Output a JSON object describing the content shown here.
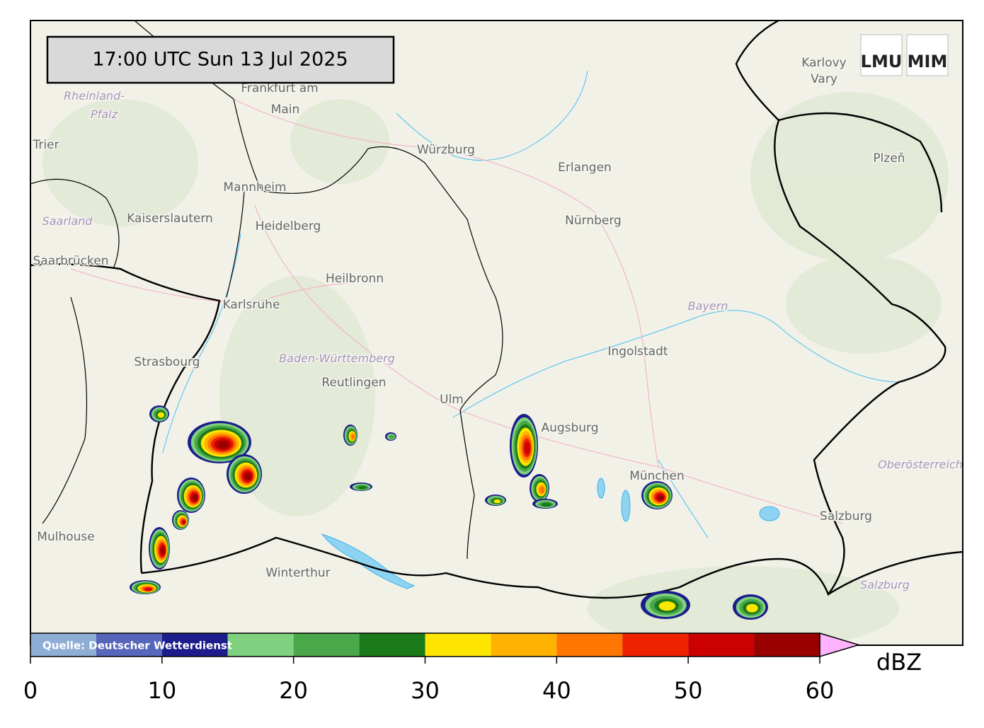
{
  "timestamp": "17:00 UTC  Sun 13 Jul 2025",
  "source": "Quelle: Deutscher Wetterdienst",
  "logos": [
    "LMU",
    "MIM"
  ],
  "cities": [
    "Frankfurt am",
    "Main",
    "Trier",
    "Würzburg",
    "Erlangen",
    "Nürnberg",
    "Mannheim",
    "Kaiserslautern",
    "Heidelberg",
    "Saarbrücken",
    "Heilbronn",
    "Karlsruhe",
    "Ingolstadt",
    "Strasbourg",
    "Reutlingen",
    "Ulm",
    "Augsburg",
    "München",
    "Salzburg",
    "Mulhouse",
    "Winterthur",
    "Karlovy",
    "Vary",
    "Plzeň"
  ],
  "regions": [
    "Rheinland-",
    "Pfalz",
    "Saarland",
    "Bayern",
    "Baden-Württemberg",
    "Oberösterreich",
    "Salzburg"
  ],
  "colorbar": {
    "unit": "dBZ",
    "bounds": [
      0,
      5,
      10,
      15,
      20,
      25,
      30,
      35,
      40,
      45,
      50,
      55,
      60
    ],
    "colors": [
      "#8eaed6",
      "#5566bb",
      "#1c1c8c",
      "#7fd17f",
      "#4aa84a",
      "#1a7a1a",
      "#ffe600",
      "#ffb300",
      "#ff7700",
      "#ee2200",
      "#cc0000",
      "#990000"
    ],
    "extend_color": "#ffb3ff",
    "ticks": [
      0,
      10,
      20,
      30,
      40,
      50,
      60
    ]
  }
}
